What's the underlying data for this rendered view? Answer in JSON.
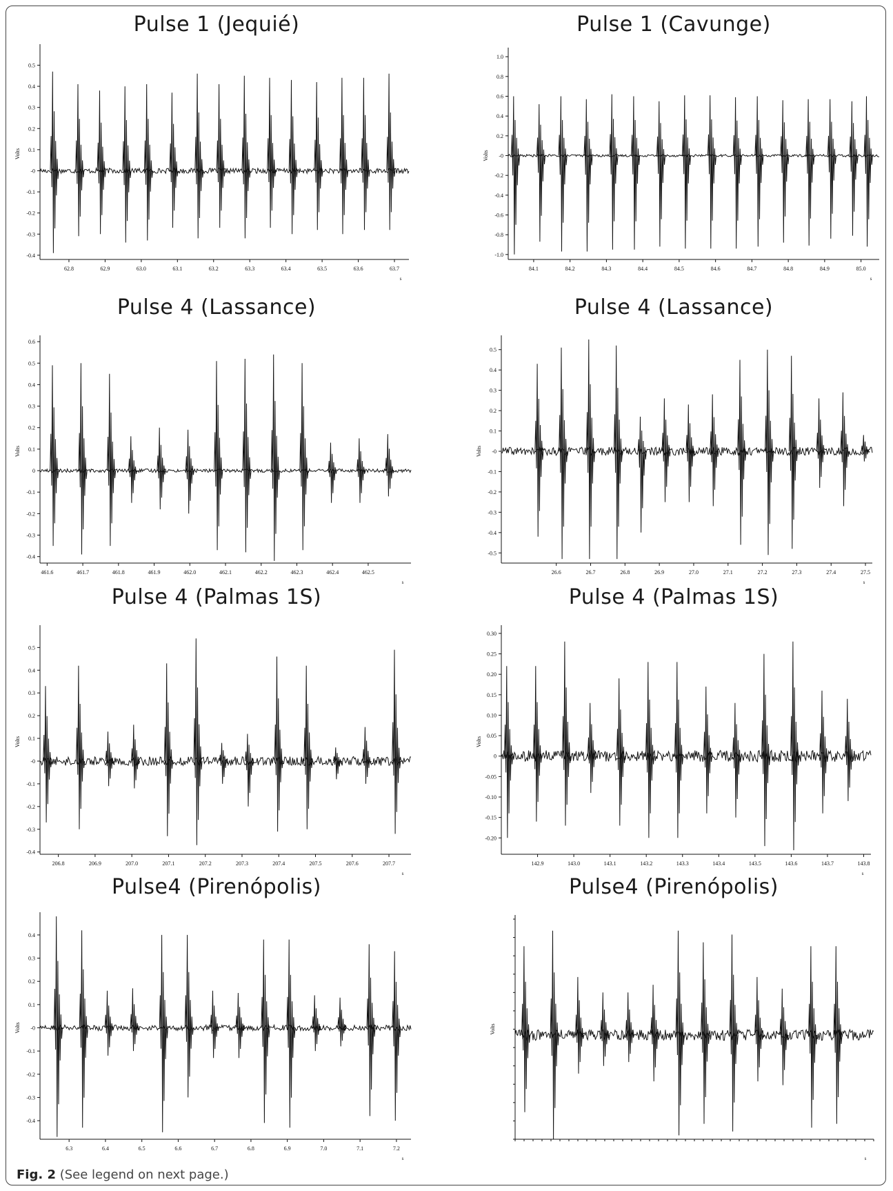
{
  "figure": {
    "caption_label": "Fig. 2",
    "caption_text": "(See legend on next page.)"
  },
  "chart_data": [
    {
      "type": "line",
      "title": "Pulse 1 (Jequié)",
      "ylabel": "Volts",
      "xlabel": "s",
      "xlim": [
        62.72,
        63.74
      ],
      "ylim": [
        -0.42,
        0.58
      ],
      "yticks": [
        "0.5",
        "0.4",
        "0.3",
        "0.2",
        "0.1",
        "-0",
        "-0.1",
        "-0.2",
        "-0.3",
        "-0.4"
      ],
      "ytick_values": [
        0.5,
        0.4,
        0.3,
        0.2,
        0.1,
        0,
        -0.1,
        -0.2,
        -0.3,
        -0.4
      ],
      "xticks": [
        "62.8",
        "62.9",
        "63.0",
        "63.1",
        "63.2",
        "63.3",
        "63.4",
        "63.5",
        "63.6",
        "63.7"
      ],
      "xtick_values": [
        62.8,
        62.9,
        63.0,
        63.1,
        63.2,
        63.3,
        63.4,
        63.5,
        63.6,
        63.7
      ],
      "noise": 0.012,
      "pulses": [
        [
          62.76,
          0.47,
          -0.39
        ],
        [
          62.83,
          0.41,
          -0.31
        ],
        [
          62.89,
          0.38,
          -0.3
        ],
        [
          62.96,
          0.4,
          -0.34
        ],
        [
          63.02,
          0.41,
          -0.33
        ],
        [
          63.09,
          0.37,
          -0.27
        ],
        [
          63.16,
          0.46,
          -0.32
        ],
        [
          63.22,
          0.41,
          -0.27
        ],
        [
          63.29,
          0.45,
          -0.32
        ],
        [
          63.36,
          0.44,
          -0.27
        ],
        [
          63.42,
          0.43,
          -0.3
        ],
        [
          63.49,
          0.42,
          -0.28
        ],
        [
          63.56,
          0.44,
          -0.3
        ],
        [
          63.62,
          0.44,
          -0.28
        ],
        [
          63.69,
          0.46,
          -0.28
        ]
      ]
    },
    {
      "type": "line",
      "title": "Pulse 1 (Cavunge)",
      "ylabel": "Volts",
      "xlabel": "s",
      "xlim": [
        84.03,
        85.05
      ],
      "ylim": [
        -1.05,
        1.05
      ],
      "yticks": [
        "1.0",
        "0.8",
        "0.6",
        "0.4",
        "0.2",
        "-0",
        "-0.2",
        "-0.4",
        "-0.6",
        "-0.8",
        "-1.0"
      ],
      "ytick_values": [
        1.0,
        0.8,
        0.6,
        0.4,
        0.2,
        0,
        -0.2,
        -0.4,
        -0.6,
        -0.8,
        -1.0
      ],
      "xticks": [
        "84.1",
        "84.2",
        "84.3",
        "84.4",
        "84.5",
        "84.6",
        "84.7",
        "84.8",
        "84.9",
        "85.0"
      ],
      "xtick_values": [
        84.1,
        84.2,
        84.3,
        84.4,
        84.5,
        84.6,
        84.7,
        84.8,
        84.9,
        85.0
      ],
      "noise": 0.012,
      "pulses": [
        [
          84.05,
          0.6,
          -1.0
        ],
        [
          84.12,
          0.52,
          -0.87
        ],
        [
          84.18,
          0.6,
          -0.97
        ],
        [
          84.25,
          0.57,
          -0.97
        ],
        [
          84.32,
          0.62,
          -0.95
        ],
        [
          84.38,
          0.6,
          -0.95
        ],
        [
          84.45,
          0.55,
          -0.92
        ],
        [
          84.52,
          0.61,
          -0.94
        ],
        [
          84.59,
          0.61,
          -0.94
        ],
        [
          84.66,
          0.59,
          -0.94
        ],
        [
          84.72,
          0.6,
          -0.92
        ],
        [
          84.79,
          0.56,
          -0.88
        ],
        [
          84.86,
          0.57,
          -0.91
        ],
        [
          84.92,
          0.57,
          -0.84
        ],
        [
          84.98,
          0.55,
          -0.81
        ],
        [
          85.02,
          0.6,
          -0.92
        ]
      ]
    },
    {
      "type": "line",
      "title": "Pulse 4 (Lassance)",
      "ylabel": "Volts",
      "xlabel": "s",
      "xlim": [
        461.58,
        462.62
      ],
      "ylim": [
        -0.43,
        0.61
      ],
      "yticks": [
        "0.6",
        "0.5",
        "0.4",
        "0.3",
        "0.2",
        "0.1",
        "0",
        "-0.1",
        "-0.2",
        "-0.3",
        "-0.4"
      ],
      "ytick_values": [
        0.6,
        0.5,
        0.4,
        0.3,
        0.2,
        0.1,
        0,
        -0.1,
        -0.2,
        -0.3,
        -0.4
      ],
      "xticks": [
        "461.6",
        "461.7",
        "461.8",
        "461.9",
        "462.0",
        "462.1",
        "462.2",
        "462.3",
        "462.4",
        "462.5"
      ],
      "xtick_values": [
        461.6,
        461.7,
        461.8,
        461.9,
        462.0,
        462.1,
        462.2,
        462.3,
        462.4,
        462.5
      ],
      "noise": 0.008,
      "pulses": [
        [
          461.62,
          0.49,
          -0.35
        ],
        [
          461.7,
          0.5,
          -0.39
        ],
        [
          461.78,
          0.45,
          -0.35
        ],
        [
          461.84,
          0.16,
          -0.15
        ],
        [
          461.92,
          0.2,
          -0.18
        ],
        [
          462.0,
          0.19,
          -0.2
        ],
        [
          462.08,
          0.51,
          -0.37
        ],
        [
          462.16,
          0.52,
          -0.38
        ],
        [
          462.24,
          0.54,
          -0.42
        ],
        [
          462.32,
          0.5,
          -0.37
        ],
        [
          462.4,
          0.13,
          -0.15
        ],
        [
          462.48,
          0.15,
          -0.15
        ],
        [
          462.56,
          0.17,
          -0.12
        ]
      ]
    },
    {
      "type": "line",
      "title": "Pulse 4 (Lassance)",
      "ylabel": "Volts",
      "xlabel": "s",
      "xlim": [
        26.44,
        27.52
      ],
      "ylim": [
        -0.55,
        0.55
      ],
      "yticks": [
        "0.5",
        "0.4",
        "0.3",
        "0.2",
        "0.1",
        "-0",
        "-0.1",
        "-0.2",
        "-0.3",
        "-0.4",
        "-0.5"
      ],
      "ytick_values": [
        0.5,
        0.4,
        0.3,
        0.2,
        0.1,
        0,
        -0.1,
        -0.2,
        -0.3,
        -0.4,
        -0.5
      ],
      "xticks": [
        "26.6",
        "26.7",
        "26.8",
        "26.9",
        "27.0",
        "27.1",
        "27.2",
        "27.3",
        "27.4",
        "27.5"
      ],
      "xtick_values": [
        26.6,
        26.7,
        26.8,
        26.9,
        27.0,
        27.1,
        27.2,
        27.3,
        27.4,
        27.5
      ],
      "noise": 0.02,
      "pulses": [
        [
          26.55,
          0.43,
          -0.42
        ],
        [
          26.62,
          0.51,
          -0.53
        ],
        [
          26.7,
          0.55,
          -0.53
        ],
        [
          26.78,
          0.52,
          -0.53
        ],
        [
          26.85,
          0.17,
          -0.4
        ],
        [
          26.92,
          0.26,
          -0.25
        ],
        [
          26.99,
          0.23,
          -0.25
        ],
        [
          27.06,
          0.28,
          -0.27
        ],
        [
          27.14,
          0.45,
          -0.46
        ],
        [
          27.22,
          0.5,
          -0.51
        ],
        [
          27.29,
          0.47,
          -0.48
        ],
        [
          27.37,
          0.26,
          -0.18
        ],
        [
          27.44,
          0.29,
          -0.27
        ],
        [
          27.5,
          0.08,
          -0.05
        ]
      ]
    },
    {
      "type": "line",
      "title": "Pulse 4 (Palmas 1S)",
      "ylabel": "Volts",
      "xlabel": "s",
      "xlim": [
        206.75,
        207.76
      ],
      "ylim": [
        -0.41,
        0.58
      ],
      "yticks": [
        "0.5",
        "0.4",
        "0.3",
        "0.2",
        "0.1",
        "-0",
        "-0.1",
        "-0.2",
        "-0.3",
        "-0.4"
      ],
      "ytick_values": [
        0.5,
        0.4,
        0.3,
        0.2,
        0.1,
        0,
        -0.1,
        -0.2,
        -0.3,
        -0.4
      ],
      "xticks": [
        "206.8",
        "206.9",
        "207.0",
        "207.1",
        "207.2",
        "207.3",
        "207.4",
        "207.5",
        "207.6",
        "207.7"
      ],
      "xtick_values": [
        206.8,
        206.9,
        207.0,
        207.1,
        207.2,
        207.3,
        207.4,
        207.5,
        207.6,
        207.7
      ],
      "noise": 0.02,
      "pulses": [
        [
          206.77,
          0.33,
          -0.27
        ],
        [
          206.86,
          0.42,
          -0.3
        ],
        [
          206.94,
          0.13,
          -0.11
        ],
        [
          207.01,
          0.16,
          -0.12
        ],
        [
          207.1,
          0.43,
          -0.33
        ],
        [
          207.18,
          0.54,
          -0.37
        ],
        [
          207.25,
          0.08,
          -0.1
        ],
        [
          207.32,
          0.12,
          -0.2
        ],
        [
          207.4,
          0.46,
          -0.31
        ],
        [
          207.48,
          0.42,
          -0.3
        ],
        [
          207.56,
          0.06,
          -0.08
        ],
        [
          207.64,
          0.15,
          -0.1
        ],
        [
          207.72,
          0.49,
          -0.32
        ]
      ]
    },
    {
      "type": "line",
      "title": "Pulse 4 (Palmas 1S)",
      "ylabel": "Volts",
      "xlabel": "s",
      "xlim": [
        142.8,
        143.82
      ],
      "ylim": [
        -0.24,
        0.31
      ],
      "yticks": [
        "0.30",
        "0.25",
        "0.20",
        "0.15",
        "0.10",
        "0.05",
        "0",
        "-0.05",
        "-0.10",
        "-0.15",
        "-0.20"
      ],
      "ytick_values": [
        0.3,
        0.25,
        0.2,
        0.15,
        0.1,
        0.05,
        0,
        -0.05,
        -0.1,
        -0.15,
        -0.2
      ],
      "xticks": [
        "142.9",
        "143.0",
        "143.1",
        "143.2",
        "143.3",
        "143.4",
        "143.5",
        "143.6",
        "143.7",
        "143.8"
      ],
      "xtick_values": [
        142.9,
        143.0,
        143.1,
        143.2,
        143.3,
        143.4,
        143.5,
        143.6,
        143.7,
        143.8
      ],
      "noise": 0.014,
      "pulses": [
        [
          142.82,
          0.22,
          -0.2
        ],
        [
          142.9,
          0.22,
          -0.16
        ],
        [
          142.98,
          0.28,
          -0.17
        ],
        [
          143.05,
          0.13,
          -0.09
        ],
        [
          143.13,
          0.19,
          -0.17
        ],
        [
          143.21,
          0.23,
          -0.2
        ],
        [
          143.29,
          0.23,
          -0.2
        ],
        [
          143.37,
          0.17,
          -0.14
        ],
        [
          143.45,
          0.13,
          -0.15
        ],
        [
          143.53,
          0.25,
          -0.22
        ],
        [
          143.61,
          0.28,
          -0.23
        ],
        [
          143.69,
          0.16,
          -0.14
        ],
        [
          143.76,
          0.14,
          -0.11
        ]
      ]
    },
    {
      "type": "line",
      "title": "Pulse4 (Pirenópolis)",
      "ylabel": "Volts",
      "xlabel": "s",
      "xlim": [
        6.22,
        7.24
      ],
      "ylim": [
        -0.48,
        0.48
      ],
      "yticks": [
        "0.4",
        "0.3",
        "0.2",
        "0.1",
        "-0",
        "-0.1",
        "-0.2",
        "-0.3",
        "-0.4"
      ],
      "ytick_values": [
        0.4,
        0.3,
        0.2,
        0.1,
        0,
        -0.1,
        -0.2,
        -0.3,
        -0.4
      ],
      "xticks": [
        "6.3",
        "6.4",
        "6.5",
        "6.6",
        "6.7",
        "6.8",
        "6.9",
        "7.0",
        "7.1",
        "7.2"
      ],
      "xtick_values": [
        6.3,
        6.4,
        6.5,
        6.6,
        6.7,
        6.8,
        6.9,
        7.0,
        7.1,
        7.2
      ],
      "noise": 0.012,
      "pulses": [
        [
          6.27,
          0.48,
          -0.47
        ],
        [
          6.34,
          0.42,
          -0.43
        ],
        [
          6.41,
          0.16,
          -0.12
        ],
        [
          6.48,
          0.17,
          -0.1
        ],
        [
          6.56,
          0.4,
          -0.45
        ],
        [
          6.63,
          0.4,
          -0.3
        ],
        [
          6.7,
          0.16,
          -0.13
        ],
        [
          6.77,
          0.15,
          -0.13
        ],
        [
          6.84,
          0.38,
          -0.41
        ],
        [
          6.91,
          0.38,
          -0.43
        ],
        [
          6.98,
          0.14,
          -0.1
        ],
        [
          7.05,
          0.13,
          -0.08
        ],
        [
          7.13,
          0.36,
          -0.38
        ],
        [
          7.2,
          0.33,
          -0.4
        ]
      ]
    },
    {
      "type": "line",
      "title": "Pulse4 (Pirenópolis)",
      "ylabel": "Volts",
      "xlabel": "s",
      "xlim": [
        0.0,
        1.0
      ],
      "ylim": [
        -0.27,
        0.3
      ],
      "yticks": [],
      "ytick_values": [],
      "xticks": [],
      "xtick_values": [],
      "noise": 0.014,
      "pulses": [
        [
          0.03,
          0.23,
          -0.2
        ],
        [
          0.11,
          0.27,
          -0.27
        ],
        [
          0.18,
          0.15,
          -0.1
        ],
        [
          0.25,
          0.11,
          -0.08
        ],
        [
          0.32,
          0.11,
          -0.07
        ],
        [
          0.39,
          0.13,
          -0.12
        ],
        [
          0.46,
          0.27,
          -0.26
        ],
        [
          0.53,
          0.24,
          -0.23
        ],
        [
          0.61,
          0.26,
          -0.25
        ],
        [
          0.68,
          0.15,
          -0.12
        ],
        [
          0.75,
          0.12,
          -0.13
        ],
        [
          0.83,
          0.23,
          -0.24
        ],
        [
          0.9,
          0.23,
          -0.23
        ]
      ]
    }
  ]
}
